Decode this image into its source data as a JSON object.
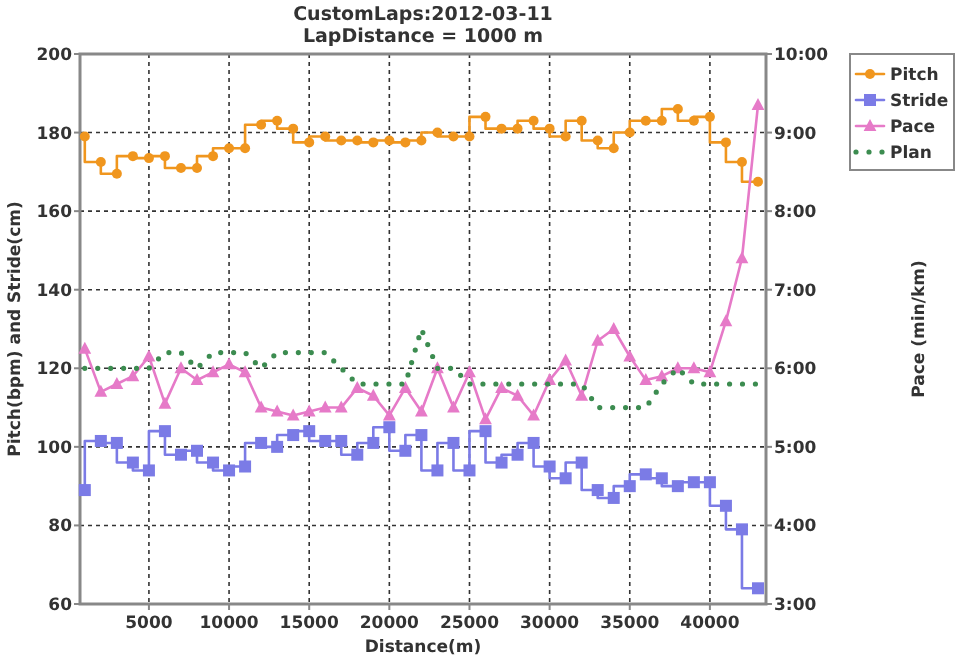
{
  "chart_data": {
    "type": "step",
    "title": "CustomLaps:2012-03-11",
    "subtitle": "LapDistance = 1000 m",
    "xlabel": "Distance(m)",
    "ylabel": "Pitch(bpm) and Stride(cm)",
    "y2label": "Pace (min/km)",
    "x": [
      1000,
      2000,
      3000,
      4000,
      5000,
      6000,
      7000,
      8000,
      9000,
      10000,
      11000,
      12000,
      13000,
      14000,
      15000,
      16000,
      17000,
      18000,
      19000,
      20000,
      21000,
      22000,
      23000,
      24000,
      25000,
      26000,
      27000,
      28000,
      29000,
      30000,
      31000,
      32000,
      33000,
      34000,
      35000,
      36000,
      37000,
      38000,
      39000,
      40000,
      41000,
      42000,
      43000
    ],
    "xlim": [
      700,
      43500
    ],
    "xticks": [
      5000,
      10000,
      15000,
      20000,
      25000,
      30000,
      35000,
      40000
    ],
    "ylim": [
      60,
      200
    ],
    "yticks": [
      60,
      80,
      100,
      120,
      140,
      160,
      180,
      200
    ],
    "y2lim": [
      3,
      10
    ],
    "y2ticks": [
      {
        "value": 3,
        "label": "3:00"
      },
      {
        "value": 4,
        "label": "4:00"
      },
      {
        "value": 5,
        "label": "5:00"
      },
      {
        "value": 6,
        "label": "6:00"
      },
      {
        "value": 7,
        "label": "7:00"
      },
      {
        "value": 8,
        "label": "8:00"
      },
      {
        "value": 9,
        "label": "9:00"
      },
      {
        "value": 10,
        "label": "10:00"
      }
    ],
    "grid": true,
    "legend": "top right",
    "series": [
      {
        "name": "Pitch",
        "type": "step",
        "color": "#f0961e",
        "marker": "circle",
        "values": [
          179,
          172.5,
          169.5,
          174,
          173.5,
          174,
          171,
          171,
          174,
          176,
          176,
          182,
          183,
          181,
          177.5,
          179,
          178,
          178,
          177.5,
          178,
          177.5,
          178,
          180,
          179,
          179,
          184,
          181,
          181,
          183,
          181,
          179,
          183,
          178,
          176,
          180,
          183,
          183,
          186,
          183,
          184,
          177.5,
          172.5,
          167.5
        ]
      },
      {
        "name": "Stride",
        "type": "step",
        "color": "#7b7be6",
        "marker": "square",
        "values": [
          89,
          101.5,
          101,
          96,
          94,
          104,
          98,
          99,
          96,
          94,
          95,
          101,
          100,
          103,
          104,
          101.5,
          101.5,
          98,
          101,
          105,
          99,
          103,
          94,
          101,
          94,
          104,
          96,
          98,
          101,
          95,
          92,
          96,
          89,
          87,
          90,
          93,
          92,
          90,
          91,
          91,
          85,
          79,
          64
        ]
      },
      {
        "name": "Pace",
        "type": "line",
        "axis": "y2",
        "color": "#e67ac8",
        "marker": "triangle",
        "values": [
          6.25,
          5.7,
          5.8,
          5.9,
          6.15,
          5.55,
          6,
          5.85,
          5.95,
          6.05,
          5.95,
          5.5,
          5.45,
          5.4,
          5.45,
          5.5,
          5.5,
          5.75,
          5.65,
          5.4,
          5.75,
          5.45,
          6,
          5.5,
          5.95,
          5.35,
          5.75,
          5.65,
          5.4,
          5.85,
          6.1,
          5.65,
          6.35,
          6.5,
          6.15,
          5.85,
          5.9,
          6,
          6,
          5.95,
          6.6,
          7.4,
          9.35
        ]
      },
      {
        "name": "Plan",
        "type": "line",
        "axis": "y2",
        "color": "#3c8c50",
        "marker": "none",
        "line_style": "dotted",
        "values": [
          6,
          6,
          6,
          6,
          6,
          6.2,
          6.2,
          6,
          6.2,
          6.2,
          6.2,
          6,
          6.2,
          6.2,
          6.2,
          6.2,
          6,
          5.8,
          5.8,
          5.8,
          5.8,
          6.5,
          6,
          6,
          5.8,
          5.8,
          5.8,
          5.8,
          5.8,
          5.8,
          5.8,
          5.8,
          5.5,
          5.5,
          5.5,
          5.5,
          5.8,
          6,
          5.8,
          5.8,
          5.8,
          5.8,
          5.8
        ]
      }
    ]
  }
}
